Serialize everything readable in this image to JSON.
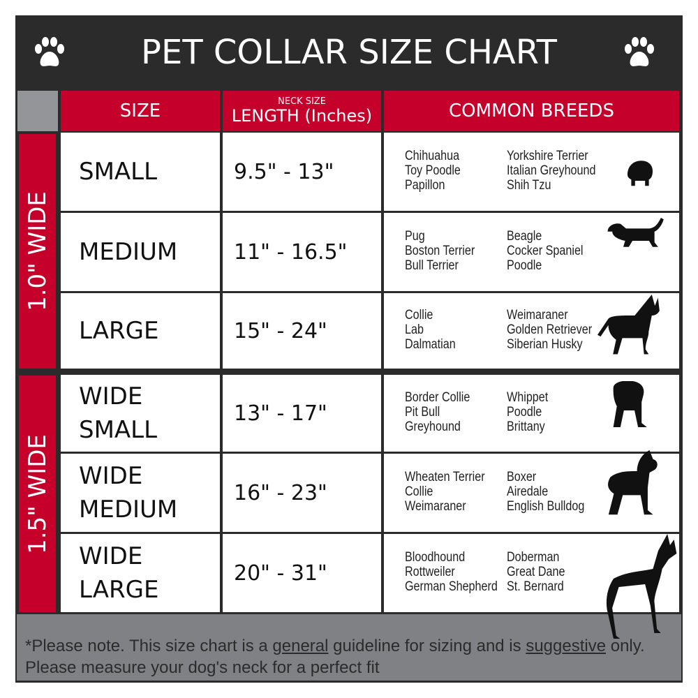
{
  "title": "PET COLLAR SIZE CHART",
  "icons": {
    "left": "paw-print-icon",
    "right": "paw-print-icon"
  },
  "header": {
    "size": "SIZE",
    "length_small": "NECK SIZE",
    "length": "LENGTH (Inches)",
    "breeds": "COMMON BREEDS"
  },
  "groups": [
    {
      "label": "1.0\" WIDE"
    },
    {
      "label": "1.5\" WIDE"
    }
  ],
  "rows": [
    {
      "size": "SMALL",
      "length": "9.5\" - 13\"",
      "breeds_a": [
        "Chihuahua",
        "Toy Poodle",
        "Papillon"
      ],
      "breeds_b": [
        "Yorkshire Terrier",
        "Italian Greyhound",
        "Shih Tzu"
      ]
    },
    {
      "size": "MEDIUM",
      "length": "11\" - 16.5\"",
      "breeds_a": [
        "Pug",
        "Boston Terrier",
        "Bull Terrier"
      ],
      "breeds_b": [
        "Beagle",
        "Cocker Spaniel",
        "Poodle"
      ]
    },
    {
      "size": "LARGE",
      "length": "15\" - 24\"",
      "breeds_a": [
        "Collie",
        "Lab",
        "Dalmatian"
      ],
      "breeds_b": [
        "Weimaraner",
        "Golden Retriever",
        "Siberian Husky"
      ]
    },
    {
      "size": "WIDE SMALL",
      "length": "13\" - 17\"",
      "breeds_a": [
        "Border Collie",
        "Pit Bull",
        "Greyhound"
      ],
      "breeds_b": [
        "Whippet",
        "Poodle",
        "Brittany"
      ]
    },
    {
      "size": "WIDE MEDIUM",
      "length": "16\" - 23\"",
      "breeds_a": [
        "Wheaten Terrier",
        "Collie",
        "Weimaraner"
      ],
      "breeds_b": [
        "Boxer",
        "Airedale",
        "English Bulldog"
      ]
    },
    {
      "size": "WIDE LARGE",
      "length": "20\" - 31\"",
      "breeds_a": [
        "Bloodhound",
        "Rottweiler",
        "German Shepherd"
      ],
      "breeds_b": [
        "Doberman",
        "Great Dane",
        "St. Bernard"
      ]
    }
  ],
  "footer": {
    "star": "*",
    "p1": "Please note. This size chart is a",
    "general": "general",
    "p2": "guideline for sizing and is",
    "suggestive": "suggestive",
    "p3": "only.",
    "line2": "Please measure your dog's neck for a perfect fit"
  },
  "colors": {
    "red": "#c4002b",
    "dark": "#2b2b2b",
    "gray": "#808184"
  }
}
